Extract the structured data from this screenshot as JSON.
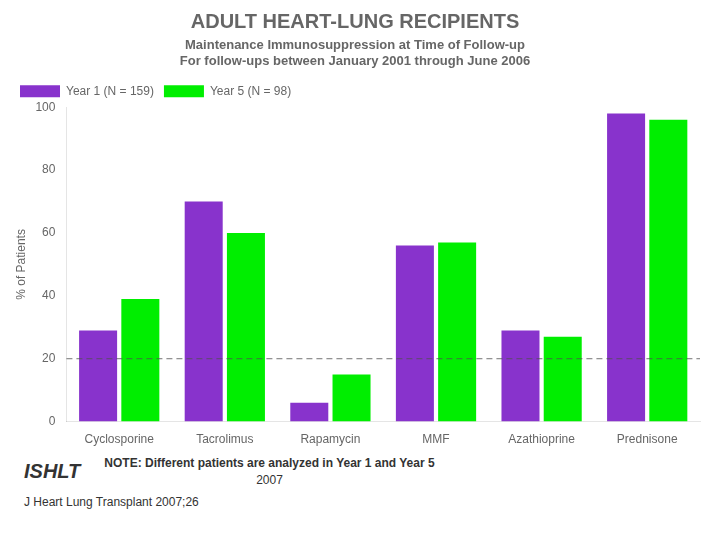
{
  "chart_data": {
    "type": "bar",
    "title": "ADULT HEART-LUNG RECIPIENTS",
    "subtitle": [
      "Maintenance Immunosuppression at Time of Follow-up",
      "For follow-ups between January 2001 through June 2006"
    ],
    "ylabel": "% of Patients",
    "categories": [
      "Cyclosporine",
      "Tacrolimus",
      "Rapamycin",
      "MMF",
      "Azathioprine",
      "Prednisone"
    ],
    "series": [
      {
        "name": "Year 1 (N = 159)",
        "color": "#8833CC",
        "values": [
          29,
          70,
          6,
          56,
          29,
          98
        ]
      },
      {
        "name": "Year 5 (N = 98)",
        "color": "#00EE00",
        "values": [
          39,
          60,
          15,
          57,
          27,
          96
        ]
      }
    ],
    "ylim": [
      0,
      100
    ],
    "yticks": [
      0,
      20,
      40,
      60,
      80,
      100
    ],
    "grid": false,
    "legend": "upper left",
    "reference_line": 20,
    "annotations": [
      "ISHLT",
      "NOTE: Different patients are analyzed in Year 1 and Year 5",
      "2007",
      "J Heart Lung Transplant 2007;26"
    ]
  }
}
